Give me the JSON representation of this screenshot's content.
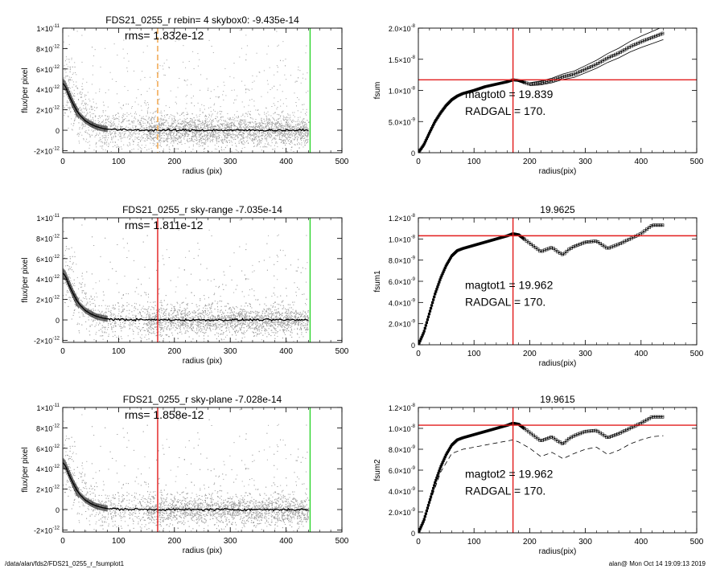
{
  "footer": {
    "path": "/data/alan/fds2/FDS21_0255_r_fsumplot1",
    "stamp": "alan@  Mon Oct 14 19:09:13 2019"
  },
  "colors": {
    "red_line": "#e21c1c",
    "green_line": "#2bd42b",
    "orange_line": "#f0a040",
    "scatter_gray": "#a0a0a0",
    "profile": "#000000"
  },
  "chart_data": [
    {
      "id": "profile-1",
      "type": "scatter",
      "title": "FDS21_0255_r rebin= 4    skybox0: -9.435e-14",
      "rms_label": "rms= 1.832e-12",
      "xlabel": "radius (pix)",
      "ylabel": "flux/per pixel",
      "xlim": [
        0,
        500
      ],
      "ylim": [
        -2.2e-12,
        1e-11
      ],
      "xticks": [
        "0",
        "100",
        "200",
        "300",
        "400",
        "500"
      ],
      "yticks": [
        {
          "value": -2e-12,
          "mant": "-2×10",
          "exp": "-12"
        },
        {
          "value": 0,
          "mant": "0",
          "exp": ""
        },
        {
          "value": 2e-12,
          "mant": "2×10",
          "exp": "-12"
        },
        {
          "value": 4e-12,
          "mant": "4×10",
          "exp": "-12"
        },
        {
          "value": 6e-12,
          "mant": "6×10",
          "exp": "-12"
        },
        {
          "value": 8e-12,
          "mant": "8×10",
          "exp": "-12"
        },
        {
          "value": 1e-11,
          "mant": "1×10",
          "exp": "-11"
        }
      ],
      "vlines": [
        {
          "x": 170,
          "color": "orange",
          "style": "dashed"
        },
        {
          "x": 443,
          "color": "green",
          "style": "solid"
        }
      ],
      "profile": {
        "x": [
          0,
          5,
          10,
          15,
          20,
          25,
          30,
          40,
          50,
          60,
          70,
          80,
          100,
          150,
          200,
          300,
          400,
          440
        ],
        "y": [
          4.6e-12,
          4.3e-12,
          3.6e-12,
          3e-12,
          2.4e-12,
          1.9e-12,
          1.5e-12,
          9.5e-13,
          6e-13,
          3.5e-13,
          2e-13,
          1e-13,
          4e-14,
          1e-14,
          0,
          0,
          0,
          0
        ]
      }
    },
    {
      "id": "fsum-1",
      "type": "line",
      "title": "",
      "xlabel": "radius(pix)",
      "ylabel": "fsum",
      "xlim": [
        0,
        500
      ],
      "ylim": [
        0,
        2e-08
      ],
      "xticks": [
        "0",
        "100",
        "200",
        "300",
        "400",
        "500"
      ],
      "yticks": [
        {
          "value": 0,
          "mant": "0",
          "exp": ""
        },
        {
          "value": 5e-09,
          "mant": "5.0×10",
          "exp": "-9"
        },
        {
          "value": 1e-08,
          "mant": "1.0×10",
          "exp": "-8"
        },
        {
          "value": 1.5e-08,
          "mant": "1.5×10",
          "exp": "-8"
        },
        {
          "value": 2e-08,
          "mant": "2.0×10",
          "exp": "-8"
        }
      ],
      "vline_x": 170,
      "hline_y": 1.17e-08,
      "annotations": [
        "magtot0 =  19.839",
        "RADGAL =    170."
      ],
      "curve": {
        "x": [
          0,
          10,
          20,
          30,
          40,
          50,
          60,
          70,
          80,
          100,
          120,
          140,
          160,
          170,
          180,
          200,
          220,
          240,
          260,
          280,
          300,
          320,
          340,
          360,
          380,
          400,
          420,
          440
        ],
        "y": [
          0,
          1.3e-09,
          3.2e-09,
          5e-09,
          6.4e-09,
          7.6e-09,
          8.5e-09,
          9.1e-09,
          9.5e-09,
          1e-08,
          1.06e-08,
          1.1e-08,
          1.14e-08,
          1.17e-08,
          1.16e-08,
          1.1e-08,
          1.12e-08,
          1.16e-08,
          1.22e-08,
          1.26e-08,
          1.34e-08,
          1.42e-08,
          1.52e-08,
          1.6e-08,
          1.7e-08,
          1.78e-08,
          1.85e-08,
          1.92e-08
        ]
      },
      "envelope_offset": 8e-10,
      "envelope_from_x": 200
    },
    {
      "id": "profile-2",
      "type": "scatter",
      "title": "FDS21_0255_r sky-range -7.035e-14",
      "rms_label": "rms= 1.811e-12",
      "xlabel": "radius (pix)",
      "ylabel": "flux/per pixel",
      "xlim": [
        0,
        500
      ],
      "ylim": [
        -2.2e-12,
        1e-11
      ],
      "xticks": [
        "0",
        "100",
        "200",
        "300",
        "400",
        "500"
      ],
      "yticks": [
        {
          "value": -2e-12,
          "mant": "-2×10",
          "exp": "-12"
        },
        {
          "value": 0,
          "mant": "0",
          "exp": ""
        },
        {
          "value": 2e-12,
          "mant": "2×10",
          "exp": "-12"
        },
        {
          "value": 4e-12,
          "mant": "4×10",
          "exp": "-12"
        },
        {
          "value": 6e-12,
          "mant": "6×10",
          "exp": "-12"
        },
        {
          "value": 8e-12,
          "mant": "8×10",
          "exp": "-12"
        },
        {
          "value": 1e-11,
          "mant": "1×10",
          "exp": "-11"
        }
      ],
      "vlines": [
        {
          "x": 170,
          "color": "red",
          "style": "solid"
        },
        {
          "x": 443,
          "color": "green",
          "style": "solid"
        }
      ],
      "profile": {
        "x": [
          0,
          5,
          10,
          15,
          20,
          25,
          30,
          40,
          50,
          60,
          70,
          80,
          100,
          150,
          200,
          300,
          400,
          440
        ],
        "y": [
          4.6e-12,
          4.3e-12,
          3.6e-12,
          3e-12,
          2.4e-12,
          1.9e-12,
          1.5e-12,
          9.5e-13,
          6e-13,
          3.5e-13,
          2e-13,
          1e-13,
          4e-14,
          1e-14,
          0,
          0,
          0,
          0
        ]
      }
    },
    {
      "id": "fsum-2",
      "type": "line",
      "title": "19.9625",
      "xlabel": "radius(pix)",
      "ylabel": "fsum1",
      "xlim": [
        0,
        500
      ],
      "ylim": [
        0,
        1.2e-08
      ],
      "xticks": [
        "0",
        "100",
        "200",
        "300",
        "400",
        "500"
      ],
      "yticks": [
        {
          "value": 0,
          "mant": "0",
          "exp": ""
        },
        {
          "value": 2e-09,
          "mant": "2.0×10",
          "exp": "-9"
        },
        {
          "value": 4e-09,
          "mant": "4.0×10",
          "exp": "-9"
        },
        {
          "value": 6e-09,
          "mant": "6.0×10",
          "exp": "-9"
        },
        {
          "value": 8e-09,
          "mant": "8.0×10",
          "exp": "-9"
        },
        {
          "value": 1e-08,
          "mant": "1.0×10",
          "exp": "-8"
        },
        {
          "value": 1.2e-08,
          "mant": "1.2×10",
          "exp": "-8"
        }
      ],
      "vline_x": 170,
      "hline_y": 1.03e-08,
      "annotations": [
        "magtot1 =  19.962",
        "RADGAL =    170."
      ],
      "curve": {
        "x": [
          0,
          10,
          20,
          30,
          40,
          50,
          60,
          70,
          80,
          100,
          120,
          140,
          160,
          170,
          180,
          200,
          220,
          240,
          250,
          260,
          270,
          280,
          300,
          320,
          340,
          360,
          380,
          400,
          420,
          440
        ],
        "y": [
          0,
          1.2e-09,
          3e-09,
          4.8e-09,
          6.3e-09,
          7.5e-09,
          8.4e-09,
          8.9e-09,
          9.1e-09,
          9.4e-09,
          9.7e-09,
          1e-08,
          1.03e-08,
          1.05e-08,
          1.04e-08,
          9.6e-09,
          8.8e-09,
          9.2e-09,
          8.8e-09,
          8.5e-09,
          9e-09,
          9.3e-09,
          9.7e-09,
          9.8e-09,
          9.1e-09,
          9.5e-09,
          1e-08,
          1.05e-08,
          1.13e-08,
          1.13e-08
        ]
      }
    },
    {
      "id": "profile-3",
      "type": "scatter",
      "title": "FDS21_0255_r sky-plane -7.028e-14",
      "rms_label": "rms= 1.858e-12",
      "xlabel": "radius (pix)",
      "ylabel": "flux/per pixel",
      "xlim": [
        0,
        500
      ],
      "ylim": [
        -2.2e-12,
        1e-11
      ],
      "xticks": [
        "0",
        "100",
        "200",
        "300",
        "400",
        "500"
      ],
      "yticks": [
        {
          "value": -2e-12,
          "mant": "-2×10",
          "exp": "-12"
        },
        {
          "value": 0,
          "mant": "0",
          "exp": ""
        },
        {
          "value": 2e-12,
          "mant": "2×10",
          "exp": "-12"
        },
        {
          "value": 4e-12,
          "mant": "4×10",
          "exp": "-12"
        },
        {
          "value": 6e-12,
          "mant": "6×10",
          "exp": "-12"
        },
        {
          "value": 8e-12,
          "mant": "8×10",
          "exp": "-12"
        },
        {
          "value": 1e-11,
          "mant": "1×10",
          "exp": "-11"
        }
      ],
      "vlines": [
        {
          "x": 170,
          "color": "red",
          "style": "solid"
        },
        {
          "x": 443,
          "color": "green",
          "style": "solid"
        }
      ],
      "profile": {
        "x": [
          0,
          5,
          10,
          15,
          20,
          25,
          30,
          40,
          50,
          60,
          70,
          80,
          100,
          150,
          200,
          300,
          400,
          440
        ],
        "y": [
          4.6e-12,
          4.3e-12,
          3.6e-12,
          3e-12,
          2.4e-12,
          1.9e-12,
          1.5e-12,
          9.5e-13,
          6e-13,
          3.5e-13,
          2e-13,
          1e-13,
          4e-14,
          1e-14,
          0,
          0,
          0,
          0
        ]
      }
    },
    {
      "id": "fsum-3",
      "type": "line",
      "title": "19.9615",
      "xlabel": "radius(pix)",
      "ylabel": "fsum2",
      "xlim": [
        0,
        500
      ],
      "ylim": [
        0,
        1.2e-08
      ],
      "xticks": [
        "0",
        "100",
        "200",
        "300",
        "400",
        "500"
      ],
      "yticks": [
        {
          "value": 0,
          "mant": "0",
          "exp": ""
        },
        {
          "value": 2e-09,
          "mant": "2.0×10",
          "exp": "-9"
        },
        {
          "value": 4e-09,
          "mant": "4.0×10",
          "exp": "-9"
        },
        {
          "value": 6e-09,
          "mant": "6.0×10",
          "exp": "-9"
        },
        {
          "value": 8e-09,
          "mant": "8.0×10",
          "exp": "-9"
        },
        {
          "value": 1e-08,
          "mant": "1.0×10",
          "exp": "-8"
        },
        {
          "value": 1.2e-08,
          "mant": "1.2×10",
          "exp": "-8"
        }
      ],
      "vline_x": 170,
      "hline_y": 1.03e-08,
      "annotations": [
        "magtot2 =  19.962",
        "RADGAL =    170."
      ],
      "curve": {
        "x": [
          0,
          10,
          20,
          30,
          40,
          50,
          60,
          70,
          80,
          100,
          120,
          140,
          160,
          170,
          180,
          200,
          220,
          240,
          250,
          260,
          270,
          280,
          300,
          320,
          340,
          360,
          380,
          400,
          420,
          440
        ],
        "y": [
          0,
          1.2e-09,
          3e-09,
          4.8e-09,
          6.3e-09,
          7.5e-09,
          8.4e-09,
          8.9e-09,
          9.1e-09,
          9.4e-09,
          9.7e-09,
          1e-08,
          1.03e-08,
          1.05e-08,
          1.04e-08,
          9.6e-09,
          8.8e-09,
          9.2e-09,
          8.8e-09,
          8.5e-09,
          9e-09,
          9.3e-09,
          9.7e-09,
          9.8e-09,
          9.1e-09,
          9.5e-09,
          1e-08,
          1.05e-08,
          1.11e-08,
          1.11e-08
        ]
      },
      "dashed_curve": {
        "x": [
          0,
          20,
          40,
          60,
          80,
          100,
          120,
          140,
          160,
          170,
          180,
          200,
          220,
          240,
          260,
          280,
          300,
          320,
          340,
          360,
          380,
          400,
          420,
          440
        ],
        "y": [
          0,
          2.8e-09,
          5.8e-09,
          7.6e-09,
          8e-09,
          8.2e-09,
          8.4e-09,
          8.6e-09,
          8.8e-09,
          8.9e-09,
          8.7e-09,
          8.1e-09,
          7.3e-09,
          7.7e-09,
          7.1e-09,
          7.6e-09,
          8e-09,
          8.2e-09,
          7.5e-09,
          7.9e-09,
          8.5e-09,
          8.9e-09,
          9.2e-09,
          9.3e-09
        ]
      }
    }
  ]
}
